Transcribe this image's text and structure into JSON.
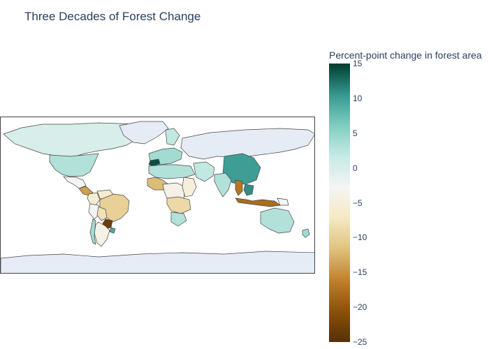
{
  "title": "Three Decades of Forest Change",
  "colorbar": {
    "title": "Percent-point change in forest area",
    "min": -25,
    "max": 15,
    "ticks": [
      "15",
      "10",
      "5",
      "0",
      "−5",
      "−10",
      "−15",
      "−20",
      "−25"
    ],
    "tick_values": [
      15,
      10,
      5,
      0,
      -5,
      -10,
      -15,
      -20,
      -25
    ],
    "colorscale": [
      "#003c30",
      "#35978f",
      "#80cdc1",
      "#c7eae5",
      "#f5f5f5",
      "#f6e8c3",
      "#dfc27d",
      "#bf812d",
      "#8c510a",
      "#543005"
    ]
  },
  "map": {
    "projection": "equirectangular",
    "no_data_color": "#e5ecf6",
    "border_color": "#444444"
  },
  "regions": [
    {
      "name": "Canada",
      "value": 0
    },
    {
      "name": "United States",
      "value": 3
    },
    {
      "name": "Mexico",
      "value": -3
    },
    {
      "name": "Central America",
      "value": -14
    },
    {
      "name": "Colombia",
      "value": -6
    },
    {
      "name": "Venezuela",
      "value": -6
    },
    {
      "name": "Brazil",
      "value": -10
    },
    {
      "name": "Peru",
      "value": -3
    },
    {
      "name": "Bolivia",
      "value": -8
    },
    {
      "name": "Paraguay",
      "value": -23
    },
    {
      "name": "Argentina",
      "value": -4
    },
    {
      "name": "Chile",
      "value": 4
    },
    {
      "name": "Uruguay",
      "value": 9
    },
    {
      "name": "Greenland",
      "value": null
    },
    {
      "name": "Europe West",
      "value": 4
    },
    {
      "name": "Spain",
      "value": 14
    },
    {
      "name": "Scandinavia",
      "value": 2
    },
    {
      "name": "Russia",
      "value": null
    },
    {
      "name": "China",
      "value": 10
    },
    {
      "name": "India",
      "value": 3
    },
    {
      "name": "Myanmar",
      "value": -17
    },
    {
      "name": "Vietnam",
      "value": 11
    },
    {
      "name": "Indonesia",
      "value": -18
    },
    {
      "name": "Papua New Guinea",
      "value": -3
    },
    {
      "name": "Australia",
      "value": 3
    },
    {
      "name": "New Zealand",
      "value": 4
    },
    {
      "name": "West Africa",
      "value": -12
    },
    {
      "name": "Central Africa",
      "value": -4
    },
    {
      "name": "East Africa",
      "value": -5
    },
    {
      "name": "Angola/Zambia",
      "value": -9
    },
    {
      "name": "Southern Africa",
      "value": 3
    },
    {
      "name": "North Africa",
      "value": 3
    },
    {
      "name": "Middle East",
      "value": 2
    },
    {
      "name": "Antarctica",
      "value": null
    }
  ]
}
